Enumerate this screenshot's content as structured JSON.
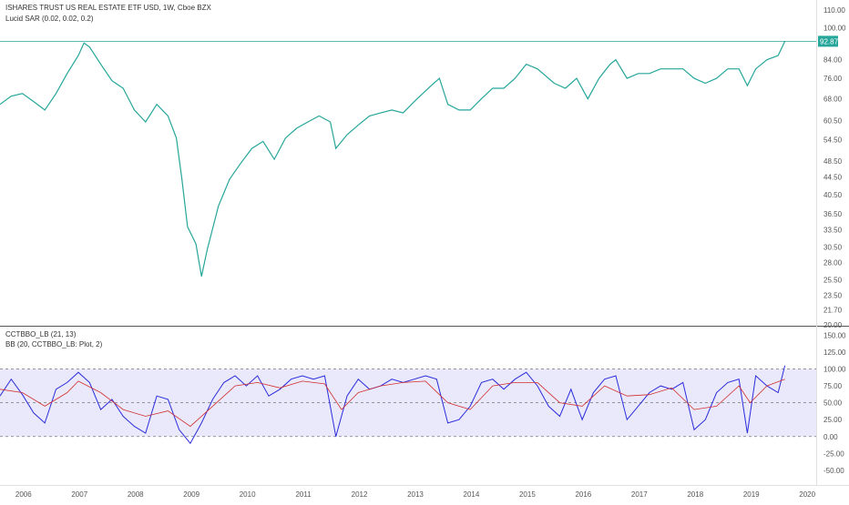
{
  "header": {
    "symbol": "ISHARES TRUST US REAL ESTATE ETF USD, 1W, Cboe BZX",
    "indicator": "Lucid SAR (0.02, 0.02, 0.2)"
  },
  "lower_header": {
    "indicator1": "CCTBBO_LB (21, 13)",
    "indicator2": "BB (20, CCTBBO_LB: Plot, 2)"
  },
  "last_price_label": "92.87",
  "chart_data": [
    {
      "type": "line",
      "title": "ISHARES TRUST US REAL ESTATE ETF USD, 1W, Cboe BZX",
      "xlabel": "",
      "ylabel": "",
      "log_scale": true,
      "ylim": [
        20,
        115
      ],
      "price_axis_ticks": [
        "110.00",
        "100.00",
        "92.87",
        "84.00",
        "76.00",
        "68.00",
        "60.50",
        "54.50",
        "48.50",
        "44.50",
        "40.50",
        "36.50",
        "33.50",
        "30.50",
        "28.00",
        "25.50",
        "23.50",
        "21.70",
        "20.00"
      ],
      "time_axis_ticks": [
        "2006",
        "2007",
        "2008",
        "2009",
        "2010",
        "2011",
        "2012",
        "2013",
        "2014",
        "2015",
        "2016",
        "2017",
        "2018",
        "2019",
        "2020"
      ],
      "last_price": 92.87,
      "series": [
        {
          "name": "price",
          "color": "#26a69a",
          "points": [
            [
              2005.6,
              66
            ],
            [
              2005.8,
              69
            ],
            [
              2006.0,
              70
            ],
            [
              2006.2,
              67
            ],
            [
              2006.4,
              64
            ],
            [
              2006.6,
              70
            ],
            [
              2006.8,
              78
            ],
            [
              2007.0,
              86
            ],
            [
              2007.1,
              92
            ],
            [
              2007.2,
              90
            ],
            [
              2007.4,
              82
            ],
            [
              2007.6,
              75
            ],
            [
              2007.8,
              72
            ],
            [
              2008.0,
              64
            ],
            [
              2008.2,
              60
            ],
            [
              2008.4,
              66
            ],
            [
              2008.6,
              62
            ],
            [
              2008.75,
              55
            ],
            [
              2008.85,
              44
            ],
            [
              2008.95,
              34
            ],
            [
              2009.1,
              31
            ],
            [
              2009.2,
              26
            ],
            [
              2009.3,
              30
            ],
            [
              2009.5,
              38
            ],
            [
              2009.7,
              44
            ],
            [
              2009.9,
              48
            ],
            [
              2010.1,
              52
            ],
            [
              2010.3,
              54
            ],
            [
              2010.5,
              49
            ],
            [
              2010.7,
              55
            ],
            [
              2010.9,
              58
            ],
            [
              2011.1,
              60
            ],
            [
              2011.3,
              62
            ],
            [
              2011.5,
              60
            ],
            [
              2011.6,
              52
            ],
            [
              2011.8,
              56
            ],
            [
              2012.0,
              59
            ],
            [
              2012.2,
              62
            ],
            [
              2012.4,
              63
            ],
            [
              2012.6,
              64
            ],
            [
              2012.8,
              63
            ],
            [
              2013.0,
              67
            ],
            [
              2013.3,
              73
            ],
            [
              2013.45,
              76
            ],
            [
              2013.6,
              66
            ],
            [
              2013.8,
              64
            ],
            [
              2014.0,
              64
            ],
            [
              2014.2,
              68
            ],
            [
              2014.4,
              72
            ],
            [
              2014.6,
              72
            ],
            [
              2014.8,
              76
            ],
            [
              2015.0,
              82
            ],
            [
              2015.2,
              80
            ],
            [
              2015.5,
              74
            ],
            [
              2015.7,
              72
            ],
            [
              2015.9,
              76
            ],
            [
              2016.1,
              68
            ],
            [
              2016.3,
              76
            ],
            [
              2016.5,
              82
            ],
            [
              2016.6,
              84
            ],
            [
              2016.8,
              76
            ],
            [
              2017.0,
              78
            ],
            [
              2017.2,
              78
            ],
            [
              2017.4,
              80
            ],
            [
              2017.6,
              80
            ],
            [
              2017.8,
              80
            ],
            [
              2018.0,
              76
            ],
            [
              2018.2,
              74
            ],
            [
              2018.4,
              76
            ],
            [
              2018.6,
              80
            ],
            [
              2018.8,
              80
            ],
            [
              2018.95,
              73
            ],
            [
              2019.1,
              80
            ],
            [
              2019.3,
              84
            ],
            [
              2019.5,
              86
            ],
            [
              2019.62,
              92.87
            ]
          ]
        }
      ]
    },
    {
      "type": "line",
      "title": "CCTBBO_LB (21, 13)",
      "xlabel": "",
      "ylabel": "",
      "ylim": [
        -65,
        160
      ],
      "axis_ticks": [
        "150.00",
        "125.00",
        "100.00",
        "75.00",
        "50.00",
        "25.00",
        "0.00",
        "-25.00",
        "-50.00"
      ],
      "band_levels": [
        0,
        100
      ],
      "mid_level": 50,
      "series": [
        {
          "name": "CCTBBO_LB",
          "color": "#2c2cdc",
          "points": [
            [
              2005.6,
              60
            ],
            [
              2005.8,
              85
            ],
            [
              2006.0,
              62
            ],
            [
              2006.2,
              35
            ],
            [
              2006.4,
              20
            ],
            [
              2006.6,
              70
            ],
            [
              2006.8,
              80
            ],
            [
              2007.0,
              95
            ],
            [
              2007.2,
              80
            ],
            [
              2007.4,
              40
            ],
            [
              2007.6,
              55
            ],
            [
              2007.8,
              30
            ],
            [
              2008.0,
              15
            ],
            [
              2008.2,
              5
            ],
            [
              2008.4,
              60
            ],
            [
              2008.6,
              55
            ],
            [
              2008.8,
              10
            ],
            [
              2009.0,
              -10
            ],
            [
              2009.2,
              20
            ],
            [
              2009.4,
              55
            ],
            [
              2009.6,
              80
            ],
            [
              2009.8,
              90
            ],
            [
              2010.0,
              75
            ],
            [
              2010.2,
              90
            ],
            [
              2010.4,
              60
            ],
            [
              2010.6,
              70
            ],
            [
              2010.8,
              85
            ],
            [
              2011.0,
              90
            ],
            [
              2011.2,
              85
            ],
            [
              2011.4,
              90
            ],
            [
              2011.6,
              0
            ],
            [
              2011.8,
              60
            ],
            [
              2012.0,
              85
            ],
            [
              2012.2,
              70
            ],
            [
              2012.4,
              75
            ],
            [
              2012.6,
              85
            ],
            [
              2012.8,
              80
            ],
            [
              2013.0,
              85
            ],
            [
              2013.2,
              90
            ],
            [
              2013.4,
              85
            ],
            [
              2013.6,
              20
            ],
            [
              2013.8,
              25
            ],
            [
              2014.0,
              45
            ],
            [
              2014.2,
              80
            ],
            [
              2014.4,
              85
            ],
            [
              2014.6,
              70
            ],
            [
              2014.8,
              85
            ],
            [
              2015.0,
              95
            ],
            [
              2015.2,
              75
            ],
            [
              2015.4,
              45
            ],
            [
              2015.6,
              30
            ],
            [
              2015.8,
              70
            ],
            [
              2016.0,
              25
            ],
            [
              2016.2,
              65
            ],
            [
              2016.4,
              85
            ],
            [
              2016.6,
              90
            ],
            [
              2016.8,
              25
            ],
            [
              2017.0,
              45
            ],
            [
              2017.2,
              65
            ],
            [
              2017.4,
              75
            ],
            [
              2017.6,
              70
            ],
            [
              2017.8,
              80
            ],
            [
              2018.0,
              10
            ],
            [
              2018.2,
              25
            ],
            [
              2018.4,
              65
            ],
            [
              2018.6,
              80
            ],
            [
              2018.8,
              85
            ],
            [
              2018.95,
              5
            ],
            [
              2019.1,
              90
            ],
            [
              2019.3,
              75
            ],
            [
              2019.5,
              65
            ],
            [
              2019.62,
              105
            ]
          ]
        },
        {
          "name": "BB",
          "color": "#d32f2f",
          "points": [
            [
              2005.6,
              70
            ],
            [
              2006.0,
              65
            ],
            [
              2006.4,
              45
            ],
            [
              2006.8,
              65
            ],
            [
              2007.0,
              82
            ],
            [
              2007.4,
              65
            ],
            [
              2007.8,
              40
            ],
            [
              2008.2,
              30
            ],
            [
              2008.6,
              38
            ],
            [
              2009.0,
              15
            ],
            [
              2009.4,
              45
            ],
            [
              2009.8,
              75
            ],
            [
              2010.2,
              80
            ],
            [
              2010.6,
              72
            ],
            [
              2011.0,
              82
            ],
            [
              2011.4,
              78
            ],
            [
              2011.7,
              40
            ],
            [
              2012.0,
              65
            ],
            [
              2012.4,
              75
            ],
            [
              2012.8,
              80
            ],
            [
              2013.2,
              82
            ],
            [
              2013.6,
              50
            ],
            [
              2014.0,
              40
            ],
            [
              2014.4,
              75
            ],
            [
              2014.8,
              80
            ],
            [
              2015.2,
              80
            ],
            [
              2015.6,
              50
            ],
            [
              2016.0,
              45
            ],
            [
              2016.4,
              75
            ],
            [
              2016.8,
              60
            ],
            [
              2017.2,
              62
            ],
            [
              2017.6,
              72
            ],
            [
              2018.0,
              40
            ],
            [
              2018.4,
              45
            ],
            [
              2018.8,
              75
            ],
            [
              2019.0,
              50
            ],
            [
              2019.3,
              75
            ],
            [
              2019.62,
              85
            ]
          ]
        }
      ]
    }
  ]
}
